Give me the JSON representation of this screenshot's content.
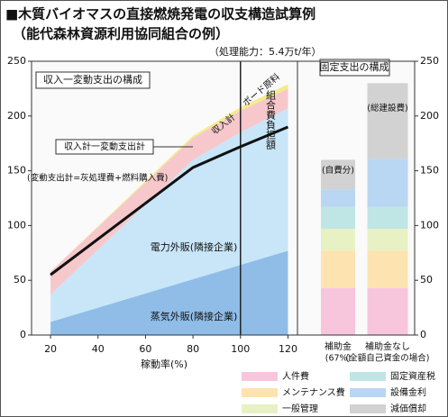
{
  "chart_data": [
    {
      "type": "area",
      "title": "■木質バイオマスの直接燃焼発電の収支構造試算例",
      "subtitle": "（能代森林資源利用協同組合の例）",
      "capacity_note": "（処理能力：5.4万t/年）",
      "panel_label": "収入一変動支出の構成",
      "x_label": "稼動率(%)",
      "x": [
        20,
        80,
        100,
        120
      ],
      "xlim": [
        12,
        124
      ],
      "xticks": [
        20,
        40,
        60,
        80,
        100,
        120
      ],
      "ylim": [
        0,
        250
      ],
      "yticks": [
        0,
        50,
        100,
        150,
        200,
        250
      ],
      "vline": 100,
      "annotations": [
        "収入計",
        "組合費負担額"
      ],
      "series": [
        {
          "name": "蒸気外販(隣接企業)",
          "color": "#8fbde8",
          "values": [
            12,
            51,
            64,
            77
          ]
        },
        {
          "name": "電力外販(隣接企業)",
          "color": "#c8e6f8",
          "values": [
            25,
            109,
            121,
            130
          ]
        },
        {
          "name": "(変動支出計=灰処理費+燃料購入費)",
          "color": "#f6c8cc",
          "values": [
            21,
            20,
            20,
            18
          ]
        },
        {
          "name": "ボード原料",
          "color": "#f4ec8a",
          "values": [
            0,
            2,
            3,
            4
          ]
        }
      ],
      "line": {
        "name": "収入計一変動支出計",
        "color": "#111",
        "values": [
          55,
          153,
          172,
          190
        ]
      }
    },
    {
      "type": "stacked_bar",
      "panel_label": "固定支出の構成",
      "categories": [
        "補助金",
        "補助金なし"
      ],
      "category_notes": [
        "(67%)",
        "(全額自己資金の場合)"
      ],
      "top_labels": [
        "(自費分)",
        "(総建設費)"
      ],
      "ylim": [
        0,
        250
      ],
      "yticks": [
        0,
        50,
        100,
        150,
        200,
        250
      ],
      "series": [
        {
          "name": "人件費",
          "color": "#f7c6dc",
          "values": [
            43,
            43
          ]
        },
        {
          "name": "メンテナンス費",
          "color": "#fde3b0",
          "values": [
            34,
            34
          ]
        },
        {
          "name": "一般管理",
          "color": "#e8f1c4",
          "values": [
            20,
            20
          ]
        },
        {
          "name": "固定資産税",
          "color": "#bfe6e4",
          "values": [
            20,
            20
          ]
        },
        {
          "name": "設備金利",
          "color": "#b9d6f2",
          "values": [
            16,
            44
          ]
        },
        {
          "name": "減価償却",
          "color": "#d2d2d2",
          "values": [
            27,
            69
          ]
        }
      ]
    }
  ]
}
